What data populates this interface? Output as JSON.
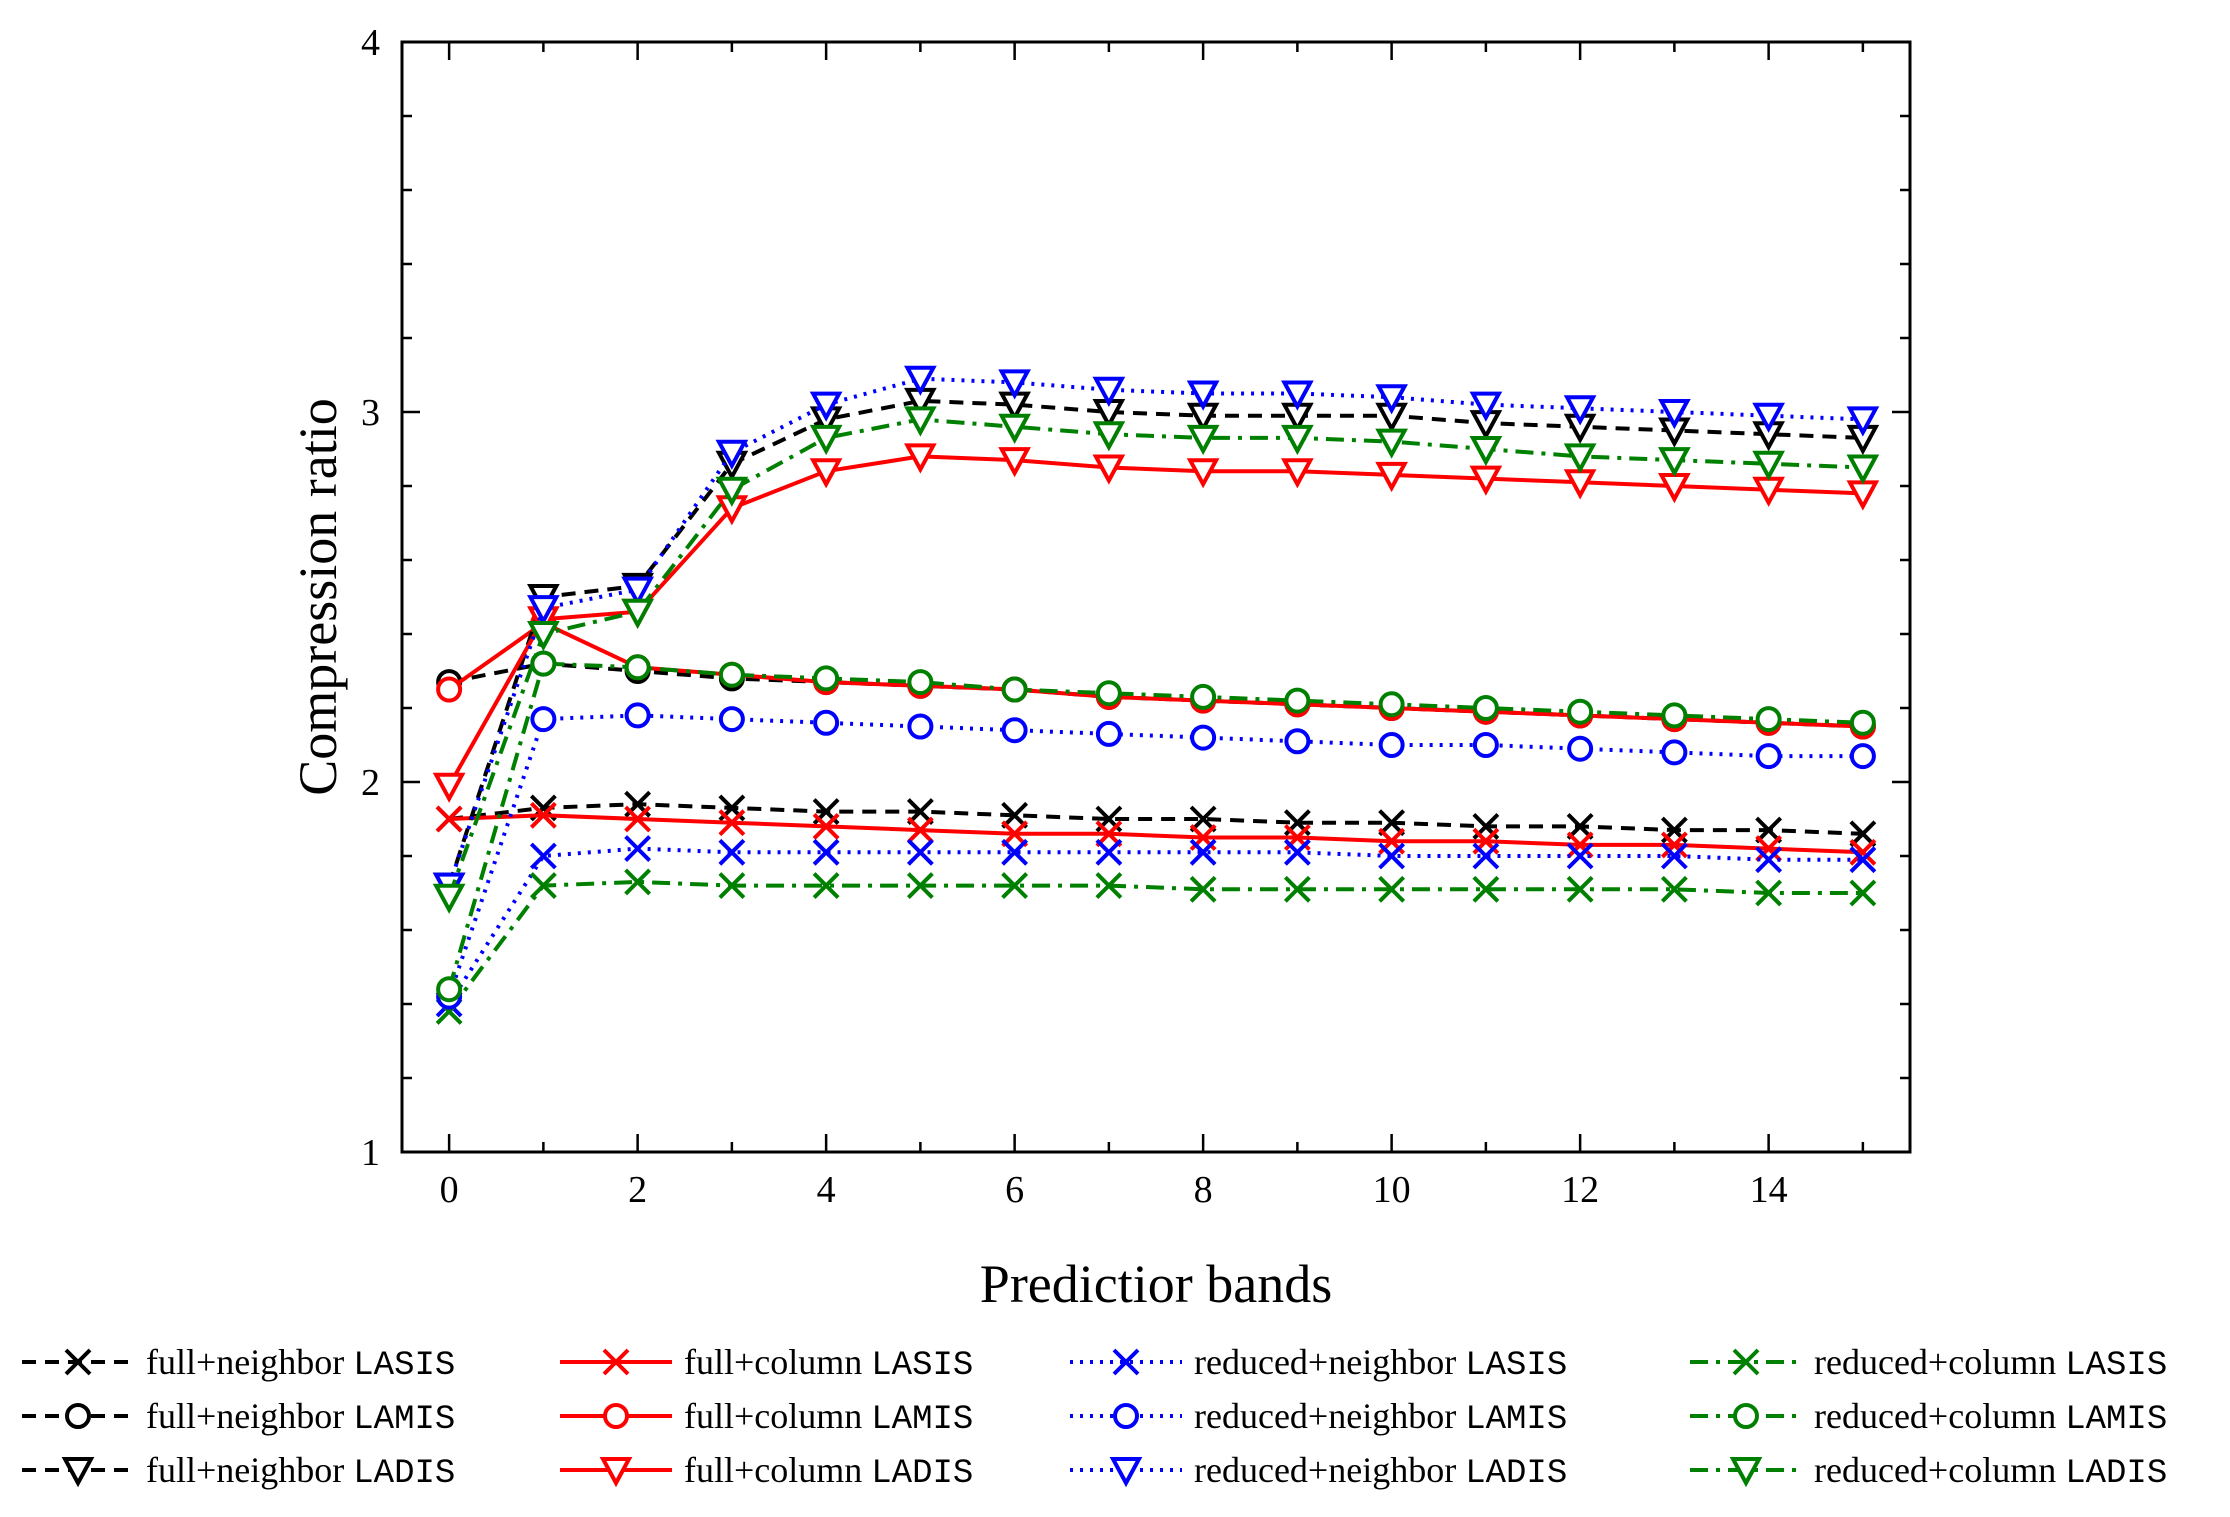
{
  "chart_data": {
    "type": "line",
    "title": "",
    "xlabel": "Predictior bands",
    "ylabel": "Compression ratio",
    "xlim": [
      -0.5,
      15.5
    ],
    "ylim": [
      1,
      4
    ],
    "xticks": [
      0,
      2,
      4,
      6,
      8,
      10,
      12,
      14
    ],
    "xtick_labels": [
      "0",
      "2",
      "4",
      "6",
      "8",
      "10",
      "12",
      "14"
    ],
    "yticks": [
      1,
      2,
      3,
      4
    ],
    "ytick_labels": [
      "1",
      "2",
      "3",
      "4"
    ],
    "grid": false,
    "legend_position": "bottom",
    "x": [
      0,
      1,
      2,
      3,
      4,
      5,
      6,
      7,
      8,
      9,
      10,
      11,
      12,
      13,
      14,
      15
    ],
    "series": [
      {
        "name": "full+neighbor",
        "method": "LASIS",
        "color": "#000000",
        "line": "dash",
        "marker": "x",
        "values": [
          1.9,
          1.93,
          1.94,
          1.93,
          1.92,
          1.92,
          1.91,
          1.9,
          1.9,
          1.89,
          1.89,
          1.88,
          1.88,
          1.87,
          1.87,
          1.86
        ]
      },
      {
        "name": "full+column",
        "method": "LASIS",
        "color": "#ff0000",
        "line": "solid",
        "marker": "x",
        "values": [
          1.9,
          1.91,
          1.9,
          1.89,
          1.88,
          1.87,
          1.86,
          1.86,
          1.85,
          1.85,
          1.84,
          1.84,
          1.83,
          1.83,
          1.82,
          1.81
        ]
      },
      {
        "name": "reduced+neighbor",
        "method": "LASIS",
        "color": "#0000ff",
        "line": "dot",
        "marker": "x",
        "values": [
          1.4,
          1.8,
          1.82,
          1.81,
          1.81,
          1.81,
          1.81,
          1.81,
          1.81,
          1.81,
          1.8,
          1.8,
          1.8,
          1.8,
          1.79,
          1.79
        ]
      },
      {
        "name": "reduced+column",
        "method": "LASIS",
        "color": "#008000",
        "line": "dashdot",
        "marker": "x",
        "values": [
          1.38,
          1.72,
          1.73,
          1.72,
          1.72,
          1.72,
          1.72,
          1.72,
          1.71,
          1.71,
          1.71,
          1.71,
          1.71,
          1.71,
          1.7,
          1.7
        ]
      },
      {
        "name": "full+neighbor",
        "method": "LAMIS",
        "color": "#000000",
        "line": "dash",
        "marker": "o",
        "values": [
          2.27,
          2.32,
          2.3,
          2.28,
          2.27,
          2.26,
          2.25,
          2.23,
          2.22,
          2.21,
          2.2,
          2.19,
          2.18,
          2.17,
          2.16,
          2.15
        ]
      },
      {
        "name": "full+column",
        "method": "LAMIS",
        "color": "#ff0000",
        "line": "solid",
        "marker": "o",
        "values": [
          2.25,
          2.43,
          2.31,
          2.29,
          2.27,
          2.26,
          2.25,
          2.23,
          2.22,
          2.21,
          2.2,
          2.19,
          2.18,
          2.17,
          2.16,
          2.15
        ]
      },
      {
        "name": "reduced+neighbor",
        "method": "LAMIS",
        "color": "#0000ff",
        "line": "dot",
        "marker": "o",
        "values": [
          1.42,
          2.17,
          2.18,
          2.17,
          2.16,
          2.15,
          2.14,
          2.13,
          2.12,
          2.11,
          2.1,
          2.1,
          2.09,
          2.08,
          2.07,
          2.07
        ]
      },
      {
        "name": "reduced+column",
        "method": "LAMIS",
        "color": "#008000",
        "line": "dashdot",
        "marker": "o",
        "values": [
          1.44,
          2.32,
          2.31,
          2.29,
          2.28,
          2.27,
          2.25,
          2.24,
          2.23,
          2.22,
          2.21,
          2.2,
          2.19,
          2.18,
          2.17,
          2.16
        ]
      },
      {
        "name": "full+neighbor",
        "method": "LADIS",
        "color": "#000000",
        "line": "dash",
        "marker": "v",
        "values": [
          1.72,
          2.5,
          2.53,
          2.86,
          2.98,
          3.03,
          3.02,
          3.0,
          2.99,
          2.99,
          2.99,
          2.97,
          2.96,
          2.95,
          2.94,
          2.93
        ]
      },
      {
        "name": "full+column",
        "method": "LADIS",
        "color": "#ff0000",
        "line": "solid",
        "marker": "v",
        "values": [
          1.99,
          2.44,
          2.46,
          2.74,
          2.84,
          2.88,
          2.87,
          2.85,
          2.84,
          2.84,
          2.83,
          2.82,
          2.81,
          2.8,
          2.79,
          2.78
        ]
      },
      {
        "name": "reduced+neighbor",
        "method": "LADIS",
        "color": "#0000ff",
        "line": "dot",
        "marker": "v",
        "values": [
          1.72,
          2.47,
          2.52,
          2.89,
          3.02,
          3.09,
          3.08,
          3.06,
          3.05,
          3.05,
          3.04,
          3.02,
          3.01,
          3.0,
          2.99,
          2.98
        ]
      },
      {
        "name": "reduced+column",
        "method": "LADIS",
        "color": "#008000",
        "line": "dashdot",
        "marker": "v",
        "values": [
          1.69,
          2.4,
          2.46,
          2.79,
          2.93,
          2.98,
          2.96,
          2.94,
          2.93,
          2.93,
          2.92,
          2.9,
          2.88,
          2.87,
          2.86,
          2.85
        ]
      }
    ]
  }
}
